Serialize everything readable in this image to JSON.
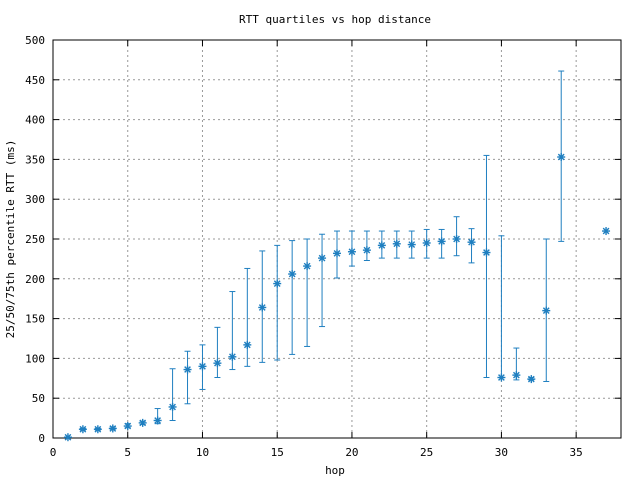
{
  "chart_data": {
    "type": "scatter",
    "title": "RTT quartiles vs hop distance",
    "xlabel": "hop",
    "ylabel": "25/50/75th percentile RTT (ms)",
    "xlim": [
      0,
      38
    ],
    "ylim": [
      0,
      500
    ],
    "xticks": [
      0,
      5,
      10,
      15,
      20,
      25,
      30,
      35
    ],
    "yticks": [
      0,
      50,
      100,
      150,
      200,
      250,
      300,
      350,
      400,
      450,
      500
    ],
    "grid": true,
    "marker": "asterisk",
    "color": "#1f7fc0",
    "points": [
      {
        "x": 1,
        "y": 1,
        "low": 1,
        "high": 1
      },
      {
        "x": 2,
        "y": 11,
        "low": 10,
        "high": 12
      },
      {
        "x": 3,
        "y": 11,
        "low": 10,
        "high": 12
      },
      {
        "x": 4,
        "y": 12,
        "low": 11,
        "high": 14
      },
      {
        "x": 5,
        "y": 15,
        "low": 13,
        "high": 18
      },
      {
        "x": 6,
        "y": 19,
        "low": 17,
        "high": 21
      },
      {
        "x": 7,
        "y": 22,
        "low": 18,
        "high": 37
      },
      {
        "x": 8,
        "y": 39,
        "low": 22,
        "high": 87
      },
      {
        "x": 9,
        "y": 86,
        "low": 43,
        "high": 109
      },
      {
        "x": 10,
        "y": 90,
        "low": 61,
        "high": 117
      },
      {
        "x": 11,
        "y": 94,
        "low": 76,
        "high": 139
      },
      {
        "x": 12,
        "y": 102,
        "low": 86,
        "high": 184
      },
      {
        "x": 13,
        "y": 117,
        "low": 90,
        "high": 213
      },
      {
        "x": 14,
        "y": 164,
        "low": 95,
        "high": 235
      },
      {
        "x": 15,
        "y": 194,
        "low": 98,
        "high": 242
      },
      {
        "x": 16,
        "y": 206,
        "low": 105,
        "high": 248
      },
      {
        "x": 17,
        "y": 216,
        "low": 115,
        "high": 250
      },
      {
        "x": 18,
        "y": 226,
        "low": 140,
        "high": 256
      },
      {
        "x": 19,
        "y": 232,
        "low": 201,
        "high": 260
      },
      {
        "x": 20,
        "y": 234,
        "low": 216,
        "high": 260
      },
      {
        "x": 21,
        "y": 236,
        "low": 223,
        "high": 260
      },
      {
        "x": 22,
        "y": 242,
        "low": 226,
        "high": 260
      },
      {
        "x": 23,
        "y": 244,
        "low": 226,
        "high": 260
      },
      {
        "x": 24,
        "y": 243,
        "low": 226,
        "high": 260
      },
      {
        "x": 25,
        "y": 245,
        "low": 226,
        "high": 262
      },
      {
        "x": 26,
        "y": 247,
        "low": 226,
        "high": 262
      },
      {
        "x": 27,
        "y": 250,
        "low": 229,
        "high": 278
      },
      {
        "x": 28,
        "y": 246,
        "low": 220,
        "high": 263
      },
      {
        "x": 29,
        "y": 233,
        "low": 76,
        "high": 355
      },
      {
        "x": 30,
        "y": 76,
        "low": 76,
        "high": 254
      },
      {
        "x": 31,
        "y": 79,
        "low": 73,
        "high": 113
      },
      {
        "x": 32,
        "y": 74,
        "low": 73,
        "high": 76
      },
      {
        "x": 33,
        "y": 160,
        "low": 71,
        "high": 250
      },
      {
        "x": 34,
        "y": 353,
        "low": 247,
        "high": 461
      },
      {
        "x": 37,
        "y": 260,
        "low": 260,
        "high": 260
      }
    ]
  }
}
